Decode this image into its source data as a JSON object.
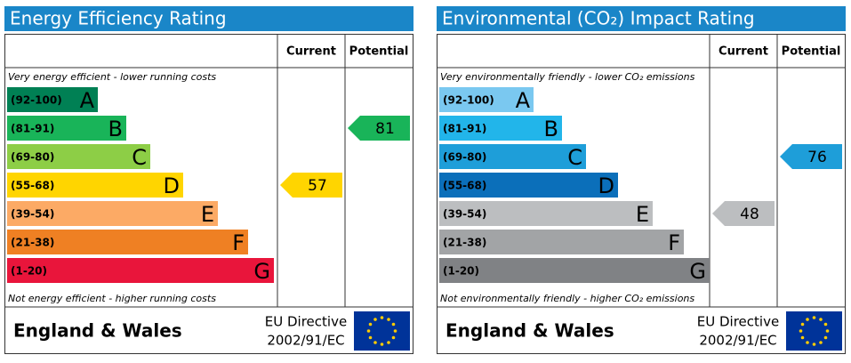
{
  "panels": [
    {
      "title": "Energy Efficiency Rating",
      "header": {
        "current": "Current",
        "potential": "Potential"
      },
      "top_note": "Very energy efficient - lower running costs",
      "bottom_note": "Not energy efficient - higher running costs",
      "bands": [
        {
          "range": "(92-100)",
          "letter": "A",
          "color": "#008054"
        },
        {
          "range": "(81-91)",
          "letter": "B",
          "color": "#19b459"
        },
        {
          "range": "(69-80)",
          "letter": "C",
          "color": "#8dce46"
        },
        {
          "range": "(55-68)",
          "letter": "D",
          "color": "#ffd500"
        },
        {
          "range": "(39-54)",
          "letter": "E",
          "color": "#fcaa65"
        },
        {
          "range": "(21-38)",
          "letter": "F",
          "color": "#ef8023"
        },
        {
          "range": "(1-20)",
          "letter": "G",
          "color": "#e9153b"
        }
      ],
      "current": 57,
      "potential": 81,
      "footer": {
        "country": "England & Wales",
        "directive_line1": "EU Directive",
        "directive_line2": "2002/91/EC"
      }
    },
    {
      "title": "Environmental (CO₂) Impact Rating",
      "header": {
        "current": "Current",
        "potential": "Potential"
      },
      "top_note": "Very environmentally friendly - lower CO₂ emissions",
      "bottom_note": "Not environmentally friendly - higher CO₂ emissions",
      "bands": [
        {
          "range": "(92-100)",
          "letter": "A",
          "color": "#7ac8f0"
        },
        {
          "range": "(81-91)",
          "letter": "B",
          "color": "#22b5ea"
        },
        {
          "range": "(69-80)",
          "letter": "C",
          "color": "#1e9ed9"
        },
        {
          "range": "(55-68)",
          "letter": "D",
          "color": "#0b6fba"
        },
        {
          "range": "(39-54)",
          "letter": "E",
          "color": "#bcbec0"
        },
        {
          "range": "(21-38)",
          "letter": "F",
          "color": "#a2a4a6"
        },
        {
          "range": "(1-20)",
          "letter": "G",
          "color": "#808285"
        }
      ],
      "current": 48,
      "potential": 76,
      "footer": {
        "country": "England & Wales",
        "directive_line1": "EU Directive",
        "directive_line2": "2002/91/EC"
      }
    }
  ]
}
